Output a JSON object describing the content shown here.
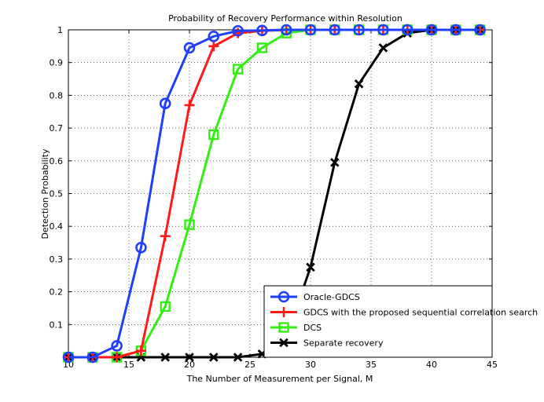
{
  "chart_data": {
    "type": "line",
    "title": "Probability of Recovery Performance within Resolution",
    "xlabel": "The Number of Measurement per Signal, M",
    "ylabel": "Detection Probability",
    "xlim": [
      10,
      45
    ],
    "ylim": [
      0,
      1
    ],
    "xticks": [
      "10",
      "15",
      "20",
      "25",
      "30",
      "35",
      "40",
      "45"
    ],
    "yticks": [
      "0.1",
      "0.2",
      "0.3",
      "0.4",
      "0.5",
      "0.6",
      "0.7",
      "0.8",
      "0.9",
      "1"
    ],
    "grid": true,
    "legend_position": "bottom-right",
    "x": [
      10,
      12,
      14,
      16,
      18,
      20,
      22,
      24,
      26,
      28,
      30,
      32,
      34,
      36,
      38,
      40,
      42,
      44
    ],
    "series": [
      {
        "name": "Oracle-GDCS",
        "color": "#1f3fff",
        "marker": "circle",
        "values": [
          0,
          0,
          0.035,
          0.335,
          0.775,
          0.945,
          0.98,
          0.997,
          0.998,
          1,
          1,
          1,
          1,
          1,
          1,
          1,
          1,
          1
        ]
      },
      {
        "name": "GDCS with the proposed sequential correlation search",
        "color": "#ff1a1a",
        "marker": "plus",
        "values": [
          0,
          0,
          0,
          0.02,
          0.37,
          0.77,
          0.95,
          0.99,
          0.997,
          1,
          1,
          1,
          1,
          1,
          1,
          1,
          1,
          1
        ]
      },
      {
        "name": "DCS",
        "color": "#33ee11",
        "marker": "square",
        "values": [
          0,
          0,
          0,
          0.02,
          0.155,
          0.405,
          0.68,
          0.88,
          0.945,
          0.99,
          1,
          1,
          1,
          1,
          1,
          1,
          1,
          1
        ]
      },
      {
        "name": "Separate recovery",
        "color": "#000000",
        "marker": "x",
        "values": [
          0,
          0,
          0,
          0,
          0,
          0,
          0,
          0,
          0.01,
          0.06,
          0.275,
          0.595,
          0.835,
          0.945,
          0.99,
          1,
          1,
          1
        ]
      }
    ]
  }
}
